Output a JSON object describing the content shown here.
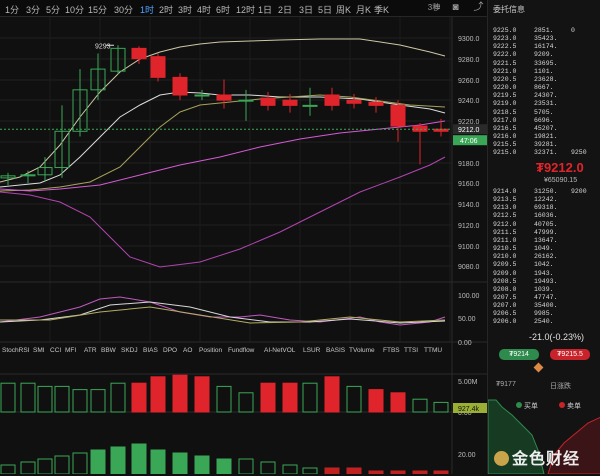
{
  "toolbar": {
    "timeframes": [
      "1分",
      "3分",
      "5分",
      "10分",
      "15分",
      "30分",
      "1时",
      "2时",
      "3时",
      "4时",
      "6时",
      "12时",
      "1日",
      "2日",
      "3日",
      "5日",
      "周K",
      "月K",
      "季K"
    ],
    "active_index": 6,
    "seconds_label": "3秒"
  },
  "price_axis": {
    "ticks": [
      "9300.0",
      "9280.0",
      "9260.0",
      "9240.0",
      "9220.0",
      "9200.0",
      "9180.0",
      "9160.0",
      "9140.0",
      "9120.0",
      "9100.0",
      "9080.0"
    ],
    "current_price": "9212.0",
    "countdown": "47:06"
  },
  "chart": {
    "high_label": "9293",
    "up_color": "#3aa757",
    "down_color": "#e0242b"
  },
  "indicator_axes": {
    "osc": [
      "100.00",
      "50.00",
      "0.00"
    ],
    "volume": [
      "5.00M",
      "0.00"
    ],
    "volume_current": "927.4k",
    "lower": [
      "20.00"
    ]
  },
  "indicator_tabs": [
    "StochRSI",
    "SMI",
    "CCI",
    "MFI",
    "ATR",
    "BBW",
    "SKDJ",
    "BIAS",
    "DPO",
    "AO",
    "Position",
    "Fundflow",
    "AI-NetVOL",
    "LSUR",
    "BASIS",
    "TVolume",
    "FTBS",
    "TTSI",
    "TTMU"
  ],
  "panel": {
    "title": "委托信息",
    "asks": [
      [
        "9225.0",
        "2851.",
        "0"
      ],
      [
        "9223.0",
        "35423.",
        ""
      ],
      [
        "9222.5",
        "16174.",
        ""
      ],
      [
        "9222.0",
        "9209.",
        ""
      ],
      [
        "9221.5",
        "33695.",
        ""
      ],
      [
        "9221.0",
        "1101.",
        ""
      ],
      [
        "9220.5",
        "23628.",
        ""
      ],
      [
        "9220.0",
        "8667.",
        ""
      ],
      [
        "9219.5",
        "24307.",
        ""
      ],
      [
        "9219.0",
        "23531.",
        ""
      ],
      [
        "9218.5",
        "5705.",
        ""
      ],
      [
        "9217.0",
        "6696.",
        ""
      ],
      [
        "9216.5",
        "45207.",
        ""
      ],
      [
        "9216.0",
        "19821.",
        ""
      ],
      [
        "9215.5",
        "39281.",
        ""
      ],
      [
        "9215.0",
        "32371.",
        "9250"
      ]
    ],
    "last_price": "₮9212.0",
    "last_price_sub": "¥65090.15",
    "bids": [
      [
        "9214.0",
        "31250.",
        "9200"
      ],
      [
        "9213.5",
        "12242.",
        ""
      ],
      [
        "9213.0",
        "69318.",
        ""
      ],
      [
        "9212.5",
        "16036.",
        ""
      ],
      [
        "9212.0",
        "40705.",
        ""
      ],
      [
        "9211.5",
        "47999.",
        ""
      ],
      [
        "9211.0",
        "13647.",
        ""
      ],
      [
        "9210.5",
        "1049.",
        ""
      ],
      [
        "9210.0",
        "26162.",
        ""
      ],
      [
        "9209.5",
        "1042.",
        ""
      ],
      [
        "9209.0",
        "1943.",
        ""
      ],
      [
        "9208.5",
        "19493.",
        ""
      ],
      [
        "9208.0",
        "1039.",
        ""
      ],
      [
        "9207.5",
        "47747.",
        ""
      ],
      [
        "9207.0",
        "35400.",
        ""
      ],
      [
        "9206.5",
        "9985.",
        ""
      ],
      [
        "9206.0",
        "2540.",
        ""
      ]
    ],
    "change": "-21.0(-0.23%)",
    "buy_price": "₮9214",
    "sell_price": "₮9215.5",
    "low_label": "₮9177",
    "rise_fall_label": "日涨跌",
    "buy_label": "买单",
    "sell_label": "卖单"
  },
  "watermark": "金色财经"
}
